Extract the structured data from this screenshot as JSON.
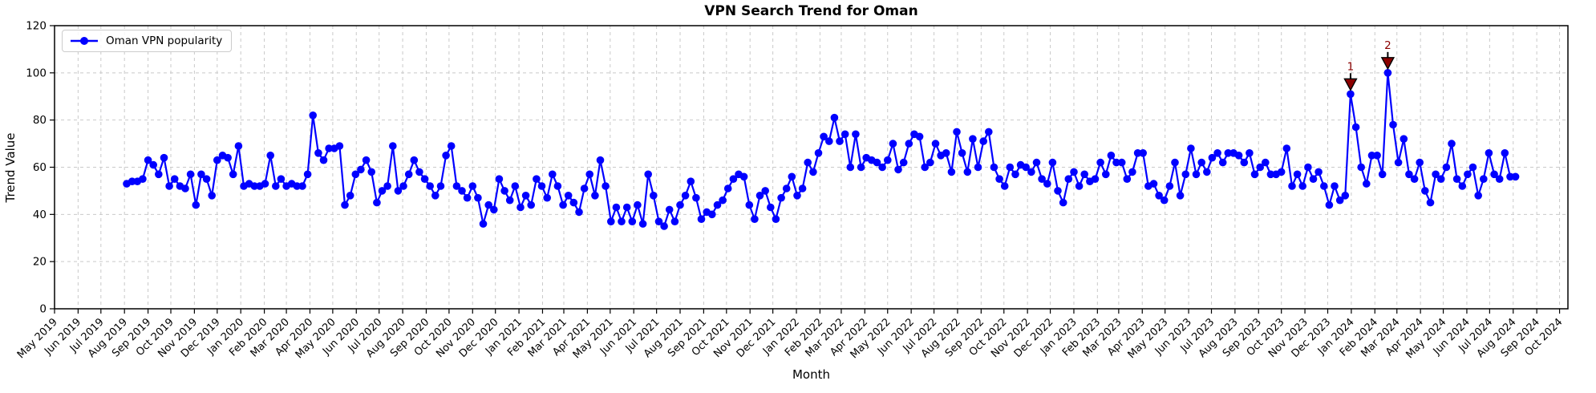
{
  "chart": {
    "title": "VPN Search Trend for Oman",
    "xlabel": "Month",
    "ylabel": "Trend Value",
    "legend_label": "Oman VPN popularity"
  },
  "chart_data": {
    "type": "line",
    "title": "VPN Search Trend for Oman",
    "xlabel": "Month",
    "ylabel": "Trend Value",
    "series_name": "Oman VPN popularity",
    "line_color": "#0000ff",
    "marker": "circle",
    "annotation_color": "#8b0000",
    "grid": true,
    "legend_position": "upper left",
    "x_unit": "week",
    "start_date": "2019-08-04",
    "x_axis_range": [
      "2019-05-01",
      "2024-10-12"
    ],
    "y_axis": {
      "min": 0,
      "max": 120,
      "ticks": [
        0,
        20,
        40,
        60,
        80,
        100,
        120
      ]
    },
    "x_tick_labels": [
      "May 2019",
      "Jun 2019",
      "Jul 2019",
      "Aug 2019",
      "Sep 2019",
      "Oct 2019",
      "Nov 2019",
      "Dec 2019",
      "Jan 2020",
      "Feb 2020",
      "Mar 2020",
      "Apr 2020",
      "May 2020",
      "Jun 2020",
      "Jul 2020",
      "Aug 2020",
      "Sep 2020",
      "Oct 2020",
      "Nov 2020",
      "Dec 2020",
      "Jan 2021",
      "Feb 2021",
      "Mar 2021",
      "Apr 2021",
      "May 2021",
      "Jun 2021",
      "Jul 2021",
      "Aug 2021",
      "Sep 2021",
      "Oct 2021",
      "Nov 2021",
      "Dec 2021",
      "Jan 2022",
      "Feb 2022",
      "Mar 2022",
      "Apr 2022",
      "May 2022",
      "Jun 2022",
      "Jul 2022",
      "Aug 2022",
      "Sep 2022",
      "Oct 2022",
      "Nov 2022",
      "Dec 2022",
      "Jan 2023",
      "Feb 2023",
      "Mar 2023",
      "Apr 2023",
      "May 2023",
      "Jun 2023",
      "Jul 2023",
      "Aug 2023",
      "Sep 2023",
      "Oct 2023",
      "Nov 2023",
      "Dec 2023",
      "Jan 2024",
      "Feb 2024",
      "Mar 2024",
      "Apr 2024",
      "May 2024",
      "Jun 2024",
      "Jul 2024",
      "Aug 2024",
      "Sep 2024",
      "Oct 2024"
    ],
    "values": [
      53,
      54,
      54,
      55,
      63,
      61,
      57,
      64,
      52,
      55,
      52,
      51,
      57,
      44,
      57,
      55,
      48,
      63,
      65,
      64,
      57,
      69,
      52,
      53,
      52,
      52,
      53,
      65,
      52,
      55,
      52,
      53,
      52,
      52,
      57,
      82,
      66,
      63,
      68,
      68,
      69,
      44,
      48,
      57,
      59,
      63,
      58,
      45,
      50,
      52,
      69,
      50,
      52,
      57,
      63,
      58,
      55,
      52,
      48,
      52,
      65,
      69,
      52,
      50,
      47,
      52,
      47,
      36,
      44,
      42,
      55,
      50,
      46,
      52,
      43,
      48,
      44,
      55,
      52,
      47,
      57,
      52,
      44,
      48,
      45,
      41,
      51,
      57,
      48,
      63,
      52,
      37,
      43,
      37,
      43,
      37,
      44,
      36,
      57,
      48,
      37,
      35,
      42,
      37,
      44,
      48,
      54,
      47,
      38,
      41,
      40,
      44,
      46,
      51,
      55,
      57,
      56,
      44,
      38,
      48,
      50,
      43,
      38,
      47,
      51,
      56,
      48,
      51,
      62,
      58,
      66,
      73,
      71,
      81,
      71,
      74,
      60,
      74,
      60,
      64,
      63,
      62,
      60,
      63,
      70,
      59,
      62,
      70,
      74,
      73,
      60,
      62,
      70,
      65,
      66,
      58,
      75,
      66,
      58,
      72,
      60,
      71,
      75,
      60,
      55,
      52,
      60,
      57,
      61,
      60,
      58,
      62,
      55,
      53,
      62,
      50,
      45,
      55,
      58,
      52,
      57,
      54,
      55,
      62,
      57,
      65,
      62,
      62,
      55,
      58,
      66,
      66,
      52,
      53,
      48,
      46,
      52,
      62,
      48,
      57,
      68,
      57,
      62,
      58,
      64,
      66,
      62,
      66,
      66,
      65,
      62,
      66,
      57,
      60,
      62,
      57,
      57,
      58,
      68,
      52,
      57,
      52,
      60,
      55,
      58,
      52,
      44,
      52,
      46,
      48,
      91,
      77,
      60,
      53,
      65,
      65,
      57,
      100,
      78,
      62,
      72,
      57,
      55,
      62,
      50,
      45,
      57,
      55,
      60,
      70,
      55,
      52,
      57,
      60,
      48,
      55,
      66,
      57,
      55,
      66,
      56,
      56
    ],
    "annotations": [
      {
        "label": "1",
        "week_index": 230,
        "date": "2023-12-31",
        "value": 91
      },
      {
        "label": "2",
        "week_index": 237,
        "date": "2024-02-18",
        "value": 100
      }
    ]
  }
}
